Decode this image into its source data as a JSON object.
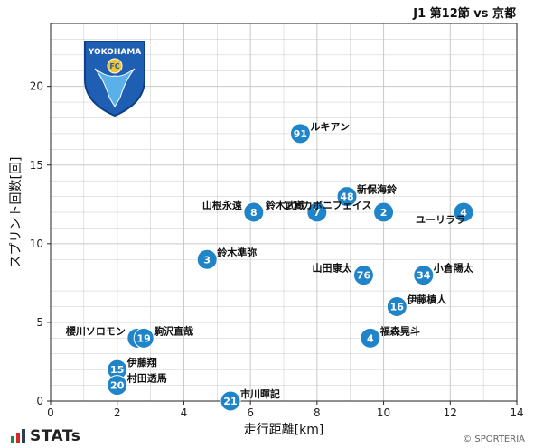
{
  "header": {
    "title": "J1 第12節 vs 京都"
  },
  "footer": {
    "brand": "STATs",
    "copyright": "© SPORTERIA"
  },
  "logo": {
    "top_text": "YOKOHAMA",
    "badge_text": "FC",
    "colors": {
      "shield": "#1e5fb3",
      "shield_dark": "#0d3f86",
      "accent": "#5ab0e8",
      "emblem": "#f2c12e"
    }
  },
  "colors": {
    "dot": "#1f84c8",
    "grid": "#c8c8c8"
  },
  "chart_data": {
    "type": "scatter",
    "title": "",
    "xlabel": "走行距離[km]",
    "ylabel": "スプリント回数[回]",
    "xlim": [
      0,
      14
    ],
    "ylim": [
      0,
      24
    ],
    "xticks": [
      0,
      2,
      4,
      6,
      8,
      10,
      12,
      14
    ],
    "yticks": [
      0,
      5,
      10,
      15,
      20
    ],
    "grid": true,
    "points": [
      {
        "number": "91",
        "name": "ルキアン",
        "x": 7.5,
        "y": 17,
        "label_side": "right"
      },
      {
        "number": "48",
        "name": "新保海鈴",
        "x": 8.9,
        "y": 13,
        "label_side": "right"
      },
      {
        "number": "8",
        "name": "山根永遠",
        "x": 6.1,
        "y": 12,
        "label_side": "left"
      },
      {
        "number": "7",
        "name": "鈴木武蔵",
        "x": 8.0,
        "y": 12,
        "label_side": "left"
      },
      {
        "number": "2",
        "name": "ンドカボニフェイス",
        "x": 10.0,
        "y": 12,
        "label_side": "left"
      },
      {
        "number": "4",
        "name": "ユーリララ",
        "x": 12.4,
        "y": 12,
        "label_side": "below-left"
      },
      {
        "number": "3",
        "name": "鈴木準弥",
        "x": 4.7,
        "y": 9,
        "label_side": "right"
      },
      {
        "number": "76",
        "name": "山田康太",
        "x": 9.4,
        "y": 8,
        "label_side": "left"
      },
      {
        "number": "34",
        "name": "小倉陽太",
        "x": 11.2,
        "y": 8,
        "label_side": "right"
      },
      {
        "number": "16",
        "name": "伊藤槙人",
        "x": 10.4,
        "y": 6,
        "label_side": "right"
      },
      {
        "number": "4",
        "name": "福森晃斗",
        "x": 9.6,
        "y": 4,
        "label_side": "right"
      },
      {
        "number": "9",
        "name": "櫻川ソロモン",
        "x": 2.6,
        "y": 4,
        "label_side": "left"
      },
      {
        "number": "19",
        "name": "駒沢直哉",
        "x": 2.8,
        "y": 4,
        "label_side": "right"
      },
      {
        "number": "15",
        "name": "伊藤翔",
        "x": 2.0,
        "y": 2,
        "label_side": "right"
      },
      {
        "number": "20",
        "name": "村田透馬",
        "x": 2.0,
        "y": 1,
        "label_side": "right"
      },
      {
        "number": "21",
        "name": "市川暉記",
        "x": 5.4,
        "y": 0,
        "label_side": "right"
      }
    ]
  }
}
